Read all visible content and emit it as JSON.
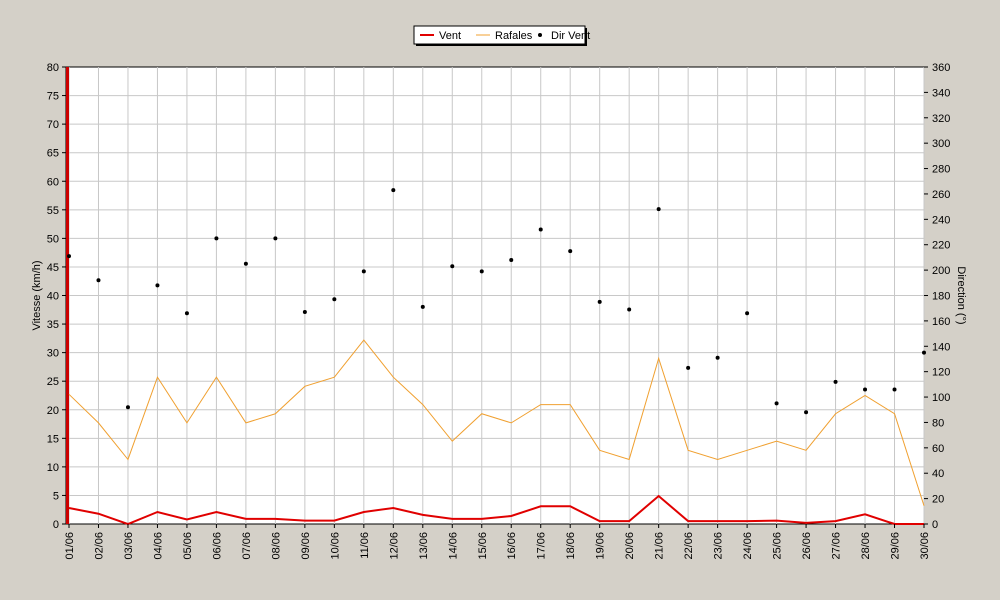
{
  "chart_data": {
    "type": "line",
    "legend": {
      "placement": "top-center",
      "entries": [
        {
          "name": "Vent",
          "color": "#e00000",
          "marker": "line"
        },
        {
          "name": "Rafales",
          "color": "#f0a030",
          "marker": "line"
        },
        {
          "name": "Dir Vent",
          "color": "#000000",
          "marker": "dot"
        }
      ]
    },
    "ylabel": "Vitesse (km/h)",
    "y2label": "Direction (°)",
    "ylim": [
      0,
      80
    ],
    "y2lim": [
      0,
      360
    ],
    "yticks": [
      "0",
      "5",
      "10",
      "15",
      "20",
      "25",
      "30",
      "35",
      "40",
      "45",
      "50",
      "55",
      "60",
      "65",
      "70",
      "75",
      "80"
    ],
    "y2ticks": [
      "0",
      "20",
      "40",
      "60",
      "80",
      "100",
      "120",
      "140",
      "160",
      "180",
      "200",
      "220",
      "240",
      "260",
      "280",
      "300",
      "320",
      "340",
      "360"
    ],
    "grid": true,
    "categories": [
      "01/06",
      "02/06",
      "03/06",
      "04/06",
      "05/06",
      "06/06",
      "07/06",
      "08/06",
      "09/06",
      "10/06",
      "11/06",
      "12/06",
      "13/06",
      "14/06",
      "15/06",
      "16/06",
      "17/06",
      "18/06",
      "19/06",
      "20/06",
      "21/06",
      "22/06",
      "23/06",
      "24/06",
      "25/06",
      "26/06",
      "27/06",
      "28/06",
      "29/06",
      "30/06"
    ],
    "series": [
      {
        "name": "Vent",
        "axis": "left",
        "color": "#e00000",
        "values": [
          2.8,
          1.8,
          0,
          2.1,
          0.8,
          2.1,
          0.9,
          0.9,
          0.6,
          0.6,
          2.1,
          2.8,
          1.6,
          0.9,
          0.9,
          1.4,
          3.1,
          3.1,
          0.5,
          0.5,
          4.9,
          0.5,
          0.5,
          0.5,
          0.6,
          0.2,
          0.5,
          1.7,
          0,
          0
        ]
      },
      {
        "name": "Rafales",
        "axis": "left",
        "color": "#f0a030",
        "values": [
          22.7,
          17.7,
          11.3,
          25.7,
          17.7,
          25.7,
          17.7,
          19.3,
          24.1,
          25.7,
          32.2,
          25.7,
          20.9,
          14.5,
          19.3,
          17.7,
          20.9,
          20.9,
          12.9,
          11.3,
          29.0,
          12.9,
          11.3,
          12.9,
          14.5,
          12.9,
          19.3,
          22.5,
          19.3,
          3.2
        ]
      },
      {
        "name": "Dir Vent",
        "axis": "right",
        "color": "#000000",
        "values": [
          211,
          192,
          92,
          188,
          166,
          225,
          205,
          225,
          167,
          177,
          199,
          263,
          171,
          203,
          199,
          208,
          232,
          215,
          175,
          169,
          248,
          123,
          131,
          166,
          95,
          88,
          112,
          106,
          106,
          135
        ]
      }
    ]
  }
}
